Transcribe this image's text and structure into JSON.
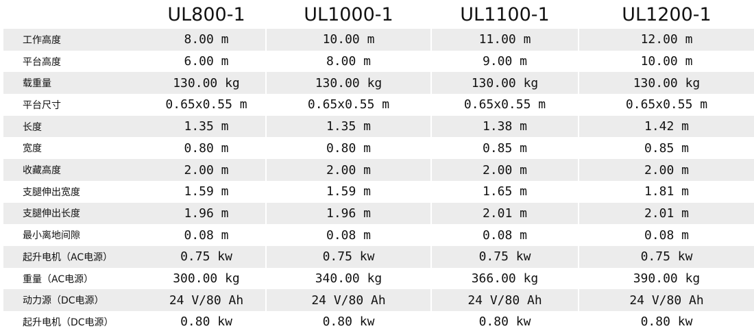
{
  "models": [
    "UL800-1",
    "UL1000-1",
    "UL1100-1",
    "UL1200-1"
  ],
  "rows": [
    {
      "label": "工作高度",
      "values": [
        "8.00 m",
        "10.00 m",
        "11.00 m",
        "12.00 m"
      ]
    },
    {
      "label": "平台高度",
      "values": [
        "6.00 m",
        "8.00 m",
        "9.00 m",
        "10.00 m"
      ]
    },
    {
      "label": "载重量",
      "values": [
        "130.00 kg",
        "130.00 kg",
        "130.00 kg",
        "130.00 kg"
      ]
    },
    {
      "label": "平台尺寸",
      "values": [
        "0.65x0.55 m",
        "0.65x0.55 m",
        "0.65x0.55 m",
        "0.65x0.55 m"
      ]
    },
    {
      "label": "长度",
      "values": [
        "1.35 m",
        "1.35 m",
        "1.38 m",
        "1.42 m"
      ]
    },
    {
      "label": "宽度",
      "values": [
        "0.80 m",
        "0.80 m",
        "0.85 m",
        "0.85 m"
      ]
    },
    {
      "label": "收藏高度",
      "values": [
        "2.00 m",
        "2.00 m",
        "2.00 m",
        "2.00 m"
      ]
    },
    {
      "label": "支腿伸出宽度",
      "values": [
        "1.59 m",
        "1.59 m",
        "1.65 m",
        "1.81 m"
      ]
    },
    {
      "label": "支腿伸出长度",
      "values": [
        "1.96 m",
        "1.96 m",
        "2.01 m",
        "2.01 m"
      ]
    },
    {
      "label": "最小离地间隙",
      "values": [
        "0.08 m",
        "0.08 m",
        "0.08 m",
        "0.08 m"
      ]
    },
    {
      "label": "起升电机（AC电源）",
      "values": [
        "0.75 kw",
        "0.75 kw",
        "0.75 kw",
        "0.75 kw"
      ]
    },
    {
      "label": "重量（AC电源）",
      "values": [
        "300.00 kg",
        "340.00 kg",
        "366.00 kg",
        "390.00 kg"
      ]
    },
    {
      "label": "动力源（DC电源）",
      "values": [
        "24 V/80 Ah",
        "24 V/80 Ah",
        "24 V/80 Ah",
        "24 V/80 Ah"
      ]
    },
    {
      "label": "起升电机（DC电源）",
      "values": [
        "0.80 kw",
        "0.80 kw",
        "0.80 kw",
        "0.80 kw"
      ]
    }
  ]
}
